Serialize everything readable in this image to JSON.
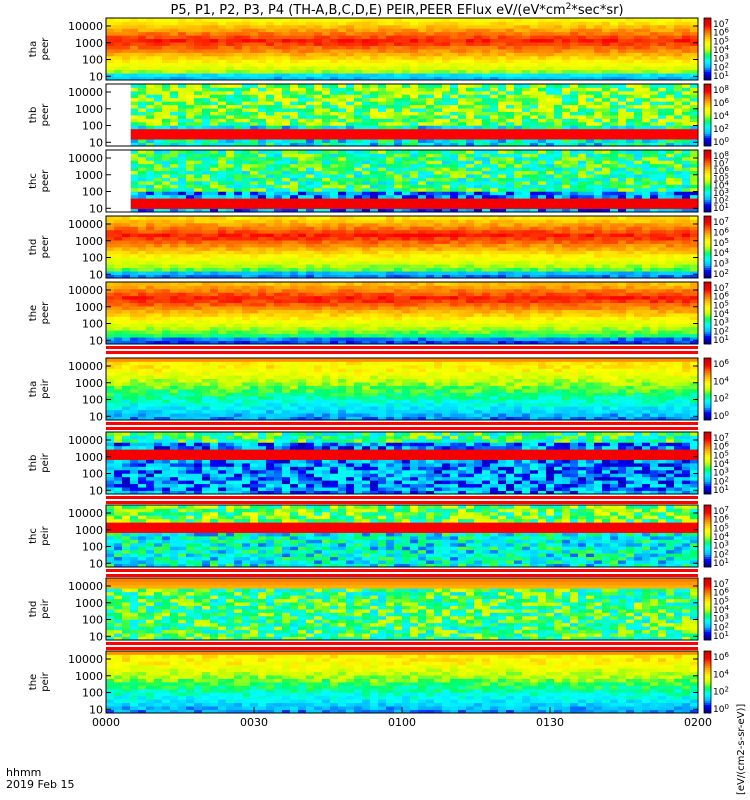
{
  "chart_data": {
    "type": "heatmap",
    "title": "P5, P1, P2, P3, P4 (TH-A,B,C,D,E) PEIR,PEER EFlux eV/(eV*cm^2*sec*sr)",
    "colorbar_label": "[eV/(cm2-s-sr-eV)]",
    "x_axis": {
      "ticks": [
        "0000",
        "0030",
        "0100",
        "0130",
        "0200"
      ],
      "range_minutes": [
        0,
        120
      ],
      "label_line1": "hhmm",
      "label_line2": "2019 Feb 15"
    },
    "y_axis": {
      "scale": "log",
      "range": [
        6,
        30000
      ],
      "ticks": [
        "10",
        "100",
        "1000",
        "10000"
      ]
    },
    "colormap": [
      "#00008b",
      "#0000ff",
      "#00bfff",
      "#00ffff",
      "#00ff66",
      "#ccff00",
      "#ffff00",
      "#ffbb00",
      "#ff6600",
      "#ff0000",
      "#cc0000"
    ],
    "panels": [
      {
        "line1": "tha",
        "line2": "peer",
        "color_ticks": [
          "10^7",
          "10^6",
          "10^5",
          "10^4",
          "10^3",
          "10^2",
          "10^1"
        ],
        "background": "orange",
        "band_log_energy": 3.0,
        "start_minutes": 0
      },
      {
        "line1": "thb",
        "line2": "peer",
        "color_ticks": [
          "10^8",
          "10^6",
          "10^4",
          "10^2",
          "10^0"
        ],
        "background": "cyan-noise",
        "band_log_energy": 1.4,
        "start_minutes": 5
      },
      {
        "line1": "thc",
        "line2": "peer",
        "color_ticks": [
          "10^8",
          "10^7",
          "10^6",
          "10^5",
          "10^4",
          "10^3",
          "10^2",
          "10^1"
        ],
        "background": "blue-noise",
        "band_log_energy": 1.2,
        "start_minutes": 5
      },
      {
        "line1": "thd",
        "line2": "peer",
        "color_ticks": [
          "10^7",
          "10^6",
          "10^5",
          "10^4",
          "10^3",
          "10^2"
        ],
        "background": "orange",
        "band_log_energy": 3.2,
        "start_minutes": 0
      },
      {
        "line1": "the",
        "line2": "peer",
        "color_ticks": [
          "10^7",
          "10^6",
          "10^5",
          "10^4",
          "10^3",
          "10^2",
          "10^1"
        ],
        "background": "orange",
        "band_log_energy": 3.4,
        "start_minutes": 0
      },
      {
        "line1": "tha",
        "line2": "peir",
        "color_ticks": [
          "10^6",
          "10^4",
          "10^2",
          "10^0"
        ],
        "background": "yellow-green",
        "band_log_energy": 3.8,
        "start_minutes": 0
      },
      {
        "line1": "thb",
        "line2": "peir",
        "color_ticks": [
          "10^7",
          "10^6",
          "10^5",
          "10^4",
          "10^3",
          "10^2",
          "10^1"
        ],
        "background": "blue-noise",
        "band_log_energy": 3.1,
        "start_minutes": 0
      },
      {
        "line1": "thc",
        "line2": "peir",
        "color_ticks": [
          "10^7",
          "10^6",
          "10^5",
          "10^4",
          "10^3",
          "10^2",
          "10^1"
        ],
        "background": "cyan-noise",
        "band_log_energy": 3.0,
        "start_minutes": 0
      },
      {
        "line1": "thd",
        "line2": "peir",
        "color_ticks": [
          "10^7",
          "10^6",
          "10^5",
          "10^4",
          "10^3",
          "10^2",
          "10^1"
        ],
        "background": "green-noise",
        "band_log_energy": 3.8,
        "start_minutes": 0
      },
      {
        "line1": "the",
        "line2": "peir",
        "color_ticks": [
          "10^6",
          "10^4",
          "10^2",
          "10^0"
        ],
        "background": "yellow-green",
        "band_log_energy": 3.8,
        "start_minutes": 0
      }
    ]
  }
}
